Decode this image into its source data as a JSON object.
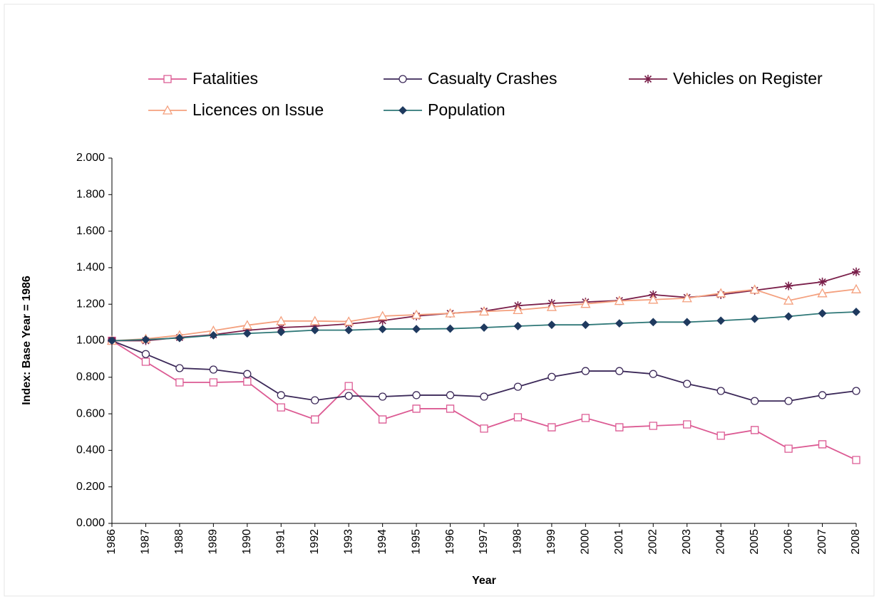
{
  "chart_data": {
    "type": "line",
    "x_label": "Year",
    "y_label": "Index: Base Year = 1986",
    "categories": [
      "1986",
      "1987",
      "1988",
      "1989",
      "1990",
      "1991",
      "1992",
      "1993",
      "1994",
      "1995",
      "1996",
      "1997",
      "1998",
      "1999",
      "2000",
      "2001",
      "2002",
      "2003",
      "2004",
      "2005",
      "2006",
      "2007",
      "2008"
    ],
    "ylim": [
      0,
      2
    ],
    "yticks": [
      {
        "value": 0,
        "label": "0.000"
      },
      {
        "value": 0.2,
        "label": "0.200"
      },
      {
        "value": 0.4,
        "label": "0.400"
      },
      {
        "value": 0.6,
        "label": "0.600"
      },
      {
        "value": 0.8,
        "label": "0.800"
      },
      {
        "value": 1,
        "label": "1.000"
      },
      {
        "value": 1.2,
        "label": "1.200"
      },
      {
        "value": 1.4,
        "label": "1.400"
      },
      {
        "value": 1.6,
        "label": "1.600"
      },
      {
        "value": 1.8,
        "label": "1.800"
      },
      {
        "value": 2,
        "label": "2.000"
      }
    ],
    "grid": false,
    "legend": "top",
    "series": [
      {
        "name": "Fatalities",
        "color": "#dc5a93",
        "marker": "square",
        "values": [
          1.0,
          0.885,
          0.772,
          0.772,
          0.776,
          0.635,
          0.569,
          0.752,
          0.569,
          0.628,
          0.628,
          0.519,
          0.581,
          0.526,
          0.577,
          0.526,
          0.534,
          0.542,
          0.48,
          0.511,
          0.409,
          0.433,
          0.347
        ]
      },
      {
        "name": "Casualty Crashes",
        "color": "#3b2858",
        "marker": "circle",
        "values": [
          1.0,
          0.927,
          0.85,
          0.842,
          0.818,
          0.702,
          0.674,
          0.698,
          0.694,
          0.702,
          0.702,
          0.694,
          0.748,
          0.802,
          0.834,
          0.834,
          0.818,
          0.764,
          0.725,
          0.67,
          0.67,
          0.702,
          0.725
        ]
      },
      {
        "name": "Vehicles on Register",
        "color": "#7a1f4a",
        "marker": "star",
        "values": [
          1.0,
          1.0,
          1.018,
          1.033,
          1.057,
          1.072,
          1.08,
          1.092,
          1.11,
          1.135,
          1.15,
          1.162,
          1.192,
          1.205,
          1.212,
          1.22,
          1.252,
          1.237,
          1.252,
          1.276,
          1.3,
          1.322,
          1.377
        ]
      },
      {
        "name": "Licences on Issue",
        "color": "#f4a07e",
        "marker": "triangle",
        "values": [
          1.0,
          1.01,
          1.03,
          1.055,
          1.085,
          1.108,
          1.108,
          1.105,
          1.135,
          1.142,
          1.15,
          1.16,
          1.168,
          1.185,
          1.202,
          1.218,
          1.225,
          1.233,
          1.26,
          1.28,
          1.22,
          1.26,
          1.282
        ]
      },
      {
        "name": "Population",
        "color": "#2e7777",
        "marker": "diamond",
        "values": [
          1.0,
          1.006,
          1.015,
          1.03,
          1.04,
          1.048,
          1.058,
          1.058,
          1.064,
          1.064,
          1.066,
          1.072,
          1.08,
          1.087,
          1.087,
          1.095,
          1.102,
          1.102,
          1.11,
          1.12,
          1.133,
          1.15,
          1.158
        ]
      }
    ]
  }
}
